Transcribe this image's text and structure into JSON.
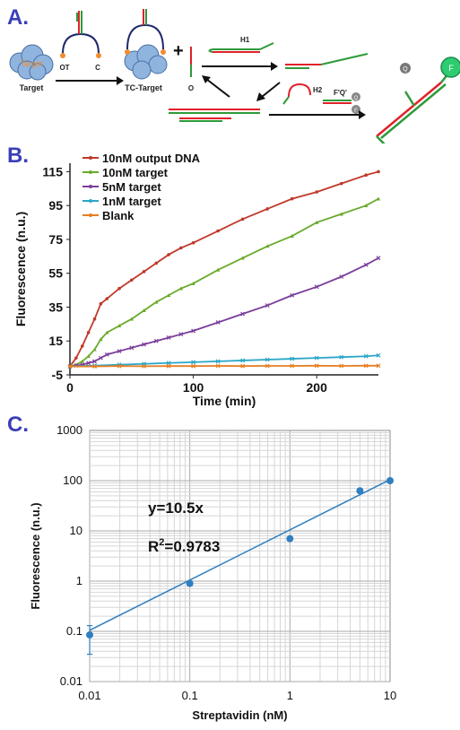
{
  "panels": {
    "a": "A.",
    "b": "B.",
    "c": "C."
  },
  "schematic": {
    "target_label": "Target",
    "target_blob_text": "Target",
    "tc_target_label": "TC-Target",
    "ot_label": "OT",
    "c_label": "C",
    "plus": "+",
    "o_label": "O",
    "h1_label": "H1",
    "h2_label": "H2",
    "fq_label": "F'Q'",
    "q_letter": "Q",
    "f_letter": "F",
    "colors": {
      "red": "#e0222a",
      "green": "#2e9a3a",
      "navy": "#1f2a6b",
      "target": "#8fb4de",
      "dot": "#f08c30"
    }
  },
  "chart_data": [
    {
      "type": "line",
      "xlabel": "Time (min)",
      "ylabel": "Fluorescence (n.u.)",
      "xlim": [
        0,
        250
      ],
      "ylim": [
        -5,
        120
      ],
      "xticks": [
        0,
        100,
        200
      ],
      "yticks": [
        -5,
        15,
        35,
        55,
        75,
        95,
        115
      ],
      "legend_position": "top-left",
      "series": [
        {
          "name": "10nM output DNA",
          "color": "#c0392b",
          "marker": "circle",
          "x": [
            0,
            5,
            10,
            15,
            20,
            25,
            30,
            40,
            50,
            60,
            70,
            80,
            90,
            100,
            120,
            140,
            160,
            180,
            200,
            220,
            240,
            250
          ],
          "y": [
            0,
            5,
            12,
            20,
            28,
            37,
            40,
            46,
            51,
            56,
            61,
            66,
            70,
            73,
            80,
            87,
            93,
            99,
            103,
            108,
            113,
            115
          ]
        },
        {
          "name": "10nM target",
          "color": "#6aaa2c",
          "marker": "triangle",
          "x": [
            0,
            5,
            10,
            15,
            20,
            25,
            30,
            40,
            50,
            60,
            70,
            80,
            90,
            100,
            120,
            140,
            160,
            180,
            200,
            220,
            240,
            250
          ],
          "y": [
            0,
            1,
            3,
            6,
            10,
            16,
            20,
            24,
            28,
            33,
            38,
            42,
            46,
            49,
            57,
            64,
            71,
            77,
            85,
            90,
            95,
            99
          ]
        },
        {
          "name": "5nM target",
          "color": "#7a3d9a",
          "marker": "x",
          "x": [
            0,
            5,
            10,
            15,
            20,
            25,
            30,
            40,
            50,
            60,
            70,
            80,
            90,
            100,
            120,
            140,
            160,
            180,
            200,
            220,
            240,
            250
          ],
          "y": [
            0,
            0.5,
            1,
            2,
            3,
            5,
            7,
            9,
            11,
            13,
            15,
            17,
            19,
            21,
            26,
            31,
            36,
            42,
            47,
            53,
            60,
            64
          ]
        },
        {
          "name": "1nM target",
          "color": "#2aa6c8",
          "marker": "x",
          "x": [
            0,
            20,
            40,
            60,
            80,
            100,
            120,
            140,
            160,
            180,
            200,
            220,
            240,
            250
          ],
          "y": [
            0,
            0.5,
            1,
            1.5,
            2,
            2.5,
            3,
            3.5,
            4,
            4.5,
            5,
            5.5,
            6,
            6.5
          ]
        },
        {
          "name": "Blank",
          "color": "#e67e22",
          "marker": "x",
          "x": [
            0,
            20,
            40,
            60,
            80,
            100,
            120,
            140,
            160,
            180,
            200,
            220,
            240,
            250
          ],
          "y": [
            0,
            0,
            0.2,
            0.1,
            0.2,
            0.2,
            0.3,
            0.2,
            0.3,
            0.3,
            0.4,
            0.3,
            0.4,
            0.4
          ]
        }
      ]
    },
    {
      "type": "scatter",
      "xlabel": "Streptavidin (nM)",
      "ylabel": "Fluorescence (n.u.)",
      "xscale": "log",
      "yscale": "log",
      "xlim": [
        0.01,
        10
      ],
      "ylim": [
        0.01,
        1000
      ],
      "xtick_labels": [
        "0.01",
        "0.1",
        "1",
        "10"
      ],
      "ytick_labels": [
        "0.01",
        "0.1",
        "1",
        "10",
        "100",
        "1000"
      ],
      "grid": true,
      "color": "#2f7fc1",
      "points": [
        {
          "x": 0.01,
          "y": 0.085,
          "err_low": 0.035,
          "err_high": 0.13
        },
        {
          "x": 0.1,
          "y": 0.9,
          "err_low": 0.8,
          "err_high": 1.0
        },
        {
          "x": 1,
          "y": 7,
          "err_low": 6.5,
          "err_high": 7.5
        },
        {
          "x": 5,
          "y": 63,
          "err_low": 60,
          "err_high": 66
        },
        {
          "x": 10,
          "y": 100,
          "err_low": 96,
          "err_high": 104
        }
      ],
      "fit": {
        "slope": 10.5,
        "x": [
          0.01,
          10
        ]
      },
      "annotations": {
        "equation": "y=10.5x",
        "r2_prefix": "R",
        "r2_sup": "2",
        "r2_value": "=0.9783"
      }
    }
  ]
}
